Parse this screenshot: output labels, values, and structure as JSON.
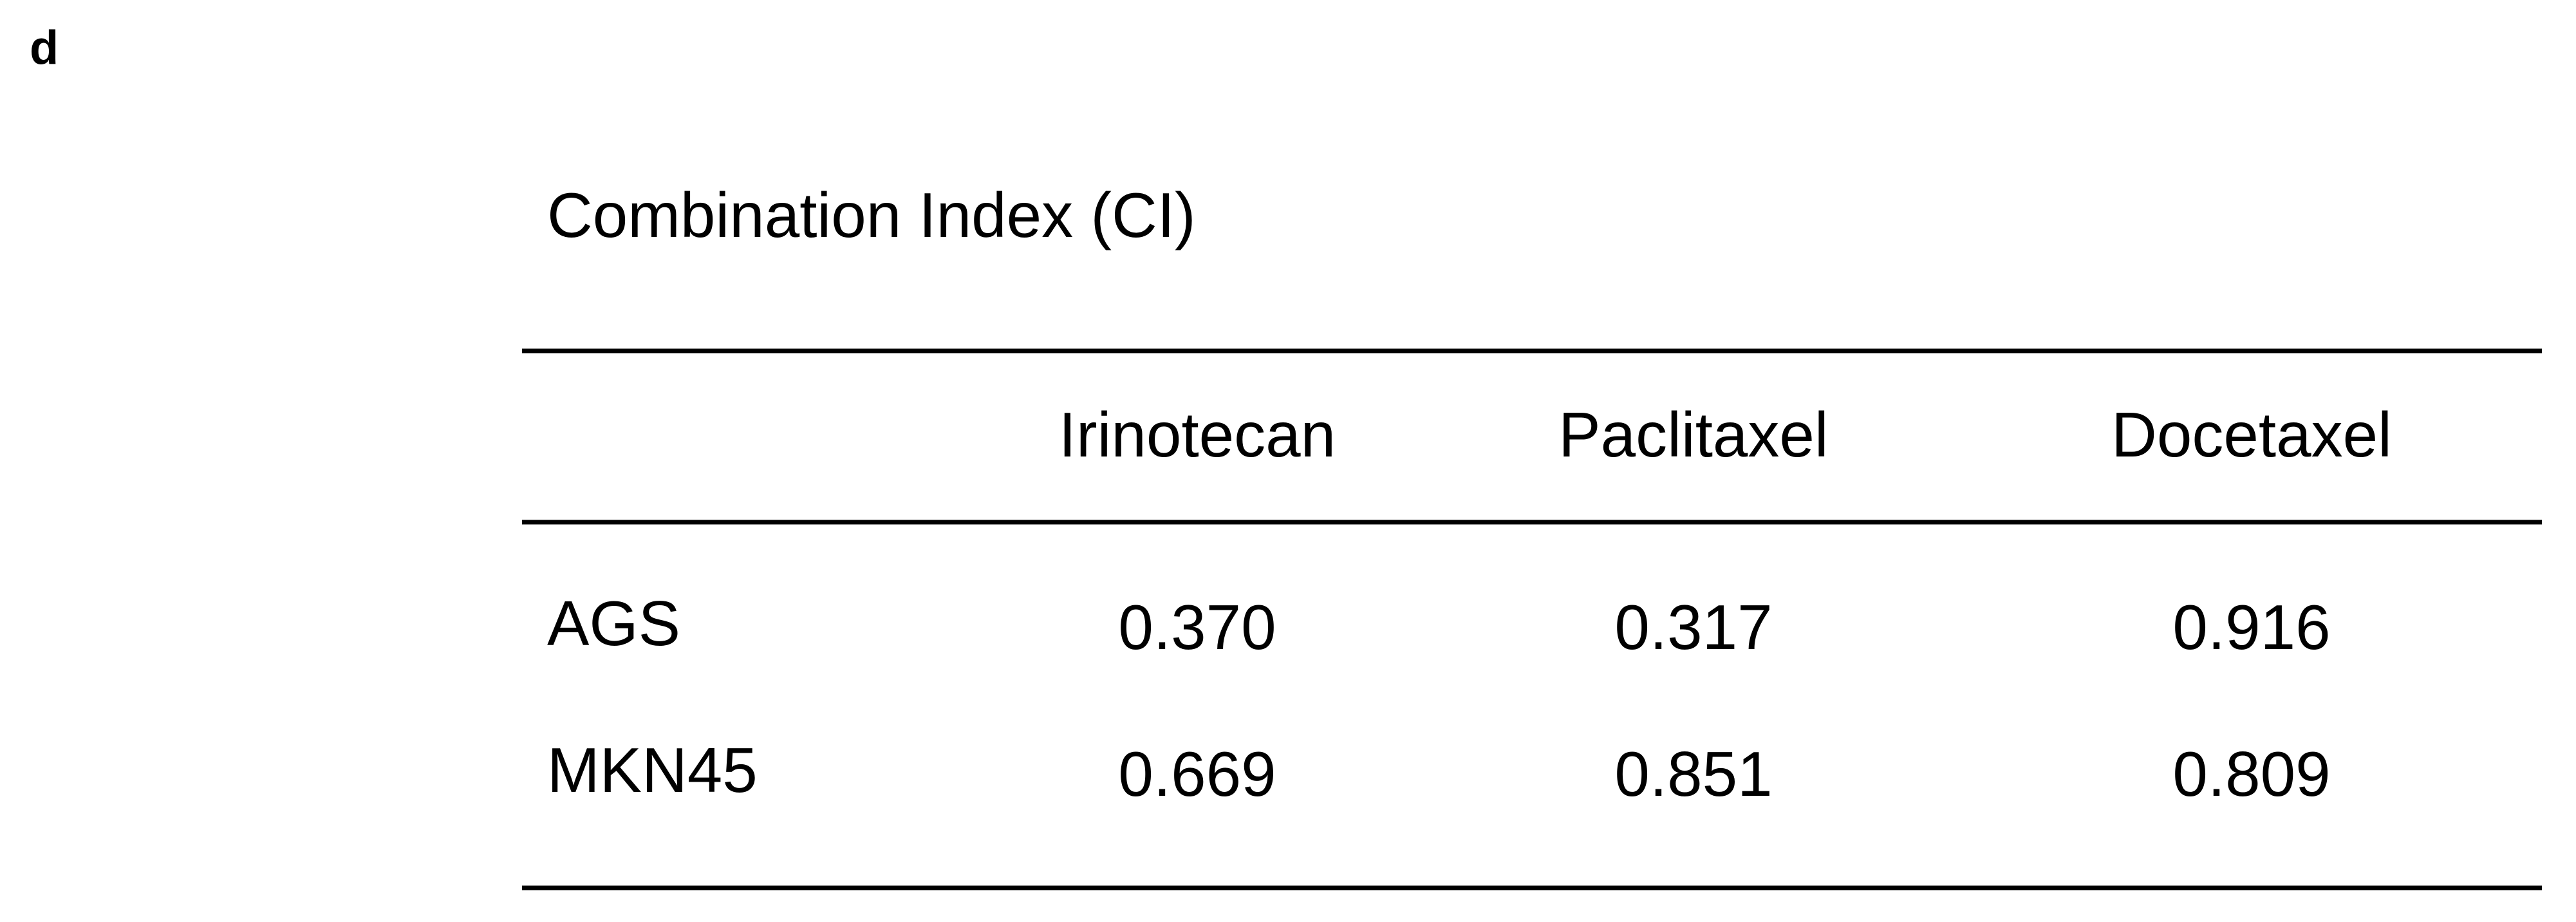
{
  "panel_label": "d",
  "title": "Combination Index (CI)",
  "table": {
    "columns": [
      "Irinotecan",
      "Paclitaxel",
      "Docetaxel"
    ],
    "rows": [
      {
        "label": "AGS",
        "values": [
          "0.370",
          "0.317",
          "0.916"
        ]
      },
      {
        "label": "MKN45",
        "values": [
          "0.669",
          "0.851",
          "0.809"
        ]
      }
    ]
  }
}
